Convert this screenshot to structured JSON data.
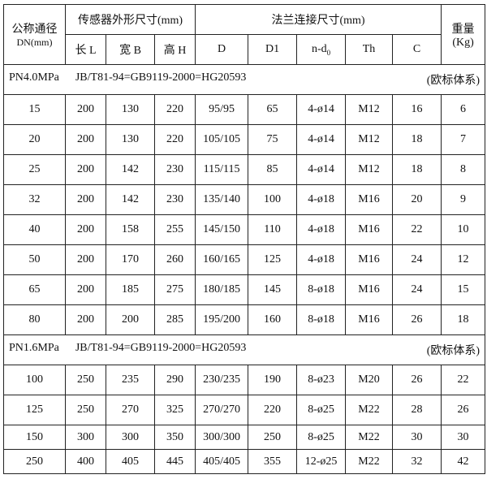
{
  "header": {
    "dn_label": "公称通径",
    "dn_unit": "DN(mm)",
    "sensor_group": "传感器外形尺寸(mm)",
    "flange_group": "法兰连接尺寸(mm)",
    "weight_label": "重量",
    "weight_unit": "(Kg)",
    "columns": [
      "长 L",
      "宽 B",
      "高 H",
      "D",
      "D1",
      "n-d",
      "Th",
      "C"
    ],
    "nd_subscript": "0"
  },
  "sections": [
    {
      "pressure": "PN4.0MPa",
      "standard": "JB/T81-94=GB9119-2000=HG20593",
      "system": "(欧标体系)",
      "rows": [
        [
          "15",
          "200",
          "130",
          "220",
          "95/95",
          "65",
          "4-ø14",
          "M12",
          "16",
          "6"
        ],
        [
          "20",
          "200",
          "130",
          "220",
          "105/105",
          "75",
          "4-ø14",
          "M12",
          "18",
          "7"
        ],
        [
          "25",
          "200",
          "142",
          "230",
          "115/115",
          "85",
          "4-ø14",
          "M12",
          "18",
          "8"
        ],
        [
          "32",
          "200",
          "142",
          "230",
          "135/140",
          "100",
          "4-ø18",
          "M16",
          "20",
          "9"
        ],
        [
          "40",
          "200",
          "158",
          "255",
          "145/150",
          "110",
          "4-ø18",
          "M16",
          "22",
          "10"
        ],
        [
          "50",
          "200",
          "170",
          "260",
          "160/165",
          "125",
          "4-ø18",
          "M16",
          "24",
          "12"
        ],
        [
          "65",
          "200",
          "185",
          "275",
          "180/185",
          "145",
          "8-ø18",
          "M16",
          "24",
          "15"
        ],
        [
          "80",
          "200",
          "200",
          "285",
          "195/200",
          "160",
          "8-ø18",
          "M16",
          "26",
          "18"
        ]
      ]
    },
    {
      "pressure": "PN1.6MPa",
      "standard": "JB/T81-94=GB9119-2000=HG20593",
      "system": "(欧标体系)",
      "rows": [
        [
          "100",
          "250",
          "235",
          "290",
          "230/235",
          "190",
          "8-ø23",
          "M20",
          "26",
          "22"
        ],
        [
          "125",
          "250",
          "270",
          "325",
          "270/270",
          "220",
          "8-ø25",
          "M22",
          "28",
          "26"
        ],
        [
          "150",
          "300",
          "300",
          "350",
          "300/300",
          "250",
          "8-ø25",
          "M22",
          "30",
          "30"
        ],
        [
          "250",
          "400",
          "405",
          "445",
          "405/405",
          "355",
          "12-ø25",
          "M22",
          "32",
          "42"
        ]
      ]
    }
  ]
}
